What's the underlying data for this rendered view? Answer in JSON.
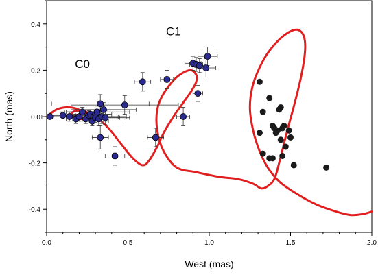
{
  "chart_data": {
    "type": "scatter",
    "title": "",
    "xlabel": "West (mas)",
    "ylabel": "North (mas)",
    "xlim": [
      0.0,
      2.0
    ],
    "ylim": [
      -0.5,
      0.5
    ],
    "x_ticks": [
      "0.0",
      "0.5",
      "1.0",
      "1.5",
      "2.0"
    ],
    "x_tick_values": [
      0.0,
      0.5,
      1.0,
      1.5,
      2.0
    ],
    "y_ticks": [
      "-0.4",
      "-0.2",
      "0.0",
      "0.2",
      "0.4"
    ],
    "y_tick_values": [
      -0.4,
      -0.2,
      0.0,
      0.2,
      0.4
    ],
    "grid": false,
    "annotations": [
      {
        "text": "C0",
        "x": 0.22,
        "y": 0.21
      },
      {
        "text": "C1",
        "x": 0.78,
        "y": 0.35
      }
    ],
    "colors": {
      "blue_points": "#2b2b8f",
      "black_points": "#1a1a1a",
      "curve": "#e02020",
      "error_bars": "#333333"
    },
    "series": [
      {
        "marker": "blue-circle-with-errorbars",
        "points": [
          {
            "x": 0.02,
            "y": 0.0,
            "xerr": 0.05,
            "yerr": 0.01
          },
          {
            "x": 0.1,
            "y": 0.005,
            "xerr": 0.08,
            "yerr": 0.015
          },
          {
            "x": 0.14,
            "y": 0.0,
            "xerr": 0.07,
            "yerr": 0.02
          },
          {
            "x": 0.18,
            "y": -0.01,
            "xerr": 0.06,
            "yerr": 0.02
          },
          {
            "x": 0.2,
            "y": 0.0,
            "xerr": 0.1,
            "yerr": 0.02
          },
          {
            "x": 0.22,
            "y": 0.02,
            "xerr": 0.1,
            "yerr": 0.02
          },
          {
            "x": 0.24,
            "y": -0.01,
            "xerr": 0.08,
            "yerr": 0.02
          },
          {
            "x": 0.26,
            "y": 0.005,
            "xerr": 0.1,
            "yerr": 0.02
          },
          {
            "x": 0.27,
            "y": 0.01,
            "xerr": 0.12,
            "yerr": 0.02
          },
          {
            "x": 0.28,
            "y": -0.02,
            "xerr": 0.1,
            "yerr": 0.02
          },
          {
            "x": 0.29,
            "y": 0.0,
            "xerr": 0.15,
            "yerr": 0.02
          },
          {
            "x": 0.3,
            "y": 0.01,
            "xerr": 0.1,
            "yerr": 0.02
          },
          {
            "x": 0.3,
            "y": -0.005,
            "xerr": 0.15,
            "yerr": 0.02
          },
          {
            "x": 0.31,
            "y": 0.02,
            "xerr": 0.2,
            "yerr": 0.025
          },
          {
            "x": 0.32,
            "y": -0.01,
            "xerr": 0.15,
            "yerr": 0.03
          },
          {
            "x": 0.33,
            "y": 0.055,
            "xerr": 0.3,
            "yerr": 0.04
          },
          {
            "x": 0.34,
            "y": 0.0,
            "xerr": 0.15,
            "yerr": 0.03
          },
          {
            "x": 0.35,
            "y": 0.03,
            "xerr": 0.2,
            "yerr": 0.03
          },
          {
            "x": 0.36,
            "y": -0.005,
            "xerr": 0.15,
            "yerr": 0.03
          },
          {
            "x": 0.33,
            "y": -0.09,
            "xerr": 0.05,
            "yerr": 0.05
          },
          {
            "x": 0.42,
            "y": -0.17,
            "xerr": 0.06,
            "yerr": 0.04
          },
          {
            "x": 0.48,
            "y": 0.05,
            "xerr": 0.33,
            "yerr": 0.04
          },
          {
            "x": 0.59,
            "y": 0.15,
            "xerr": 0.05,
            "yerr": 0.04
          },
          {
            "x": 0.67,
            "y": -0.09,
            "xerr": 0.05,
            "yerr": 0.04
          },
          {
            "x": 0.74,
            "y": 0.16,
            "xerr": 0.04,
            "yerr": 0.04
          },
          {
            "x": 0.84,
            "y": 0.0,
            "xerr": 0.04,
            "yerr": 0.04
          },
          {
            "x": 0.9,
            "y": 0.23,
            "xerr": 0.05,
            "yerr": 0.03
          },
          {
            "x": 0.92,
            "y": 0.225,
            "xerr": 0.04,
            "yerr": 0.03
          },
          {
            "x": 0.93,
            "y": 0.1,
            "xerr": 0.03,
            "yerr": 0.035
          },
          {
            "x": 0.94,
            "y": 0.22,
            "xerr": 0.03,
            "yerr": 0.03
          },
          {
            "x": 0.98,
            "y": 0.21,
            "xerr": 0.06,
            "yerr": 0.04
          },
          {
            "x": 0.99,
            "y": 0.26,
            "xerr": 0.06,
            "yerr": 0.04
          }
        ]
      },
      {
        "marker": "black-circle",
        "points": [
          {
            "x": 1.31,
            "y": 0.15
          },
          {
            "x": 1.31,
            "y": -0.07
          },
          {
            "x": 1.33,
            "y": 0.02
          },
          {
            "x": 1.33,
            "y": -0.16
          },
          {
            "x": 1.37,
            "y": 0.08
          },
          {
            "x": 1.37,
            "y": -0.18
          },
          {
            "x": 1.39,
            "y": -0.18
          },
          {
            "x": 1.39,
            "y": -0.04
          },
          {
            "x": 1.4,
            "y": -0.05
          },
          {
            "x": 1.41,
            "y": -0.07
          },
          {
            "x": 1.42,
            "y": -0.06
          },
          {
            "x": 1.43,
            "y": 0.03
          },
          {
            "x": 1.44,
            "y": 0.04
          },
          {
            "x": 1.44,
            "y": -0.1
          },
          {
            "x": 1.45,
            "y": -0.17
          },
          {
            "x": 1.45,
            "y": -0.05
          },
          {
            "x": 1.46,
            "y": -0.04
          },
          {
            "x": 1.47,
            "y": -0.13
          },
          {
            "x": 1.49,
            "y": -0.06
          },
          {
            "x": 1.5,
            "y": -0.09
          },
          {
            "x": 1.52,
            "y": -0.21
          },
          {
            "x": 1.72,
            "y": -0.22
          }
        ]
      }
    ],
    "curve": {
      "style": "red-line",
      "points": [
        [
          0.0,
          0.0
        ],
        [
          0.06,
          0.03
        ],
        [
          0.12,
          0.04
        ],
        [
          0.18,
          0.035
        ],
        [
          0.22,
          0.02
        ],
        [
          0.24,
          0.005
        ],
        [
          0.22,
          -0.01
        ],
        [
          0.18,
          -0.005
        ],
        [
          0.15,
          0.01
        ],
        [
          0.18,
          0.025
        ],
        [
          0.24,
          0.02
        ],
        [
          0.3,
          0.0
        ],
        [
          0.38,
          -0.05
        ],
        [
          0.46,
          -0.12
        ],
        [
          0.53,
          -0.18
        ],
        [
          0.59,
          -0.21
        ],
        [
          0.63,
          -0.19
        ],
        [
          0.68,
          -0.13
        ],
        [
          0.72,
          -0.07
        ],
        [
          0.78,
          0.0
        ],
        [
          0.84,
          0.06
        ],
        [
          0.89,
          0.11
        ],
        [
          0.92,
          0.15
        ],
        [
          0.92,
          0.18
        ],
        [
          0.88,
          0.2
        ],
        [
          0.8,
          0.17
        ],
        [
          0.72,
          0.1
        ],
        [
          0.68,
          0.03
        ],
        [
          0.68,
          -0.06
        ],
        [
          0.72,
          -0.15
        ],
        [
          0.8,
          -0.22
        ],
        [
          0.92,
          -0.24
        ],
        [
          1.06,
          -0.26
        ],
        [
          1.18,
          -0.27
        ],
        [
          1.27,
          -0.29
        ],
        [
          1.32,
          -0.31
        ],
        [
          1.36,
          -0.3
        ],
        [
          1.4,
          -0.27
        ],
        [
          1.43,
          -0.2
        ],
        [
          1.48,
          -0.06
        ],
        [
          1.53,
          0.07
        ],
        [
          1.57,
          0.19
        ],
        [
          1.59,
          0.29
        ],
        [
          1.58,
          0.35
        ],
        [
          1.54,
          0.375
        ],
        [
          1.48,
          0.36
        ],
        [
          1.4,
          0.31
        ],
        [
          1.33,
          0.24
        ],
        [
          1.27,
          0.14
        ],
        [
          1.25,
          0.04
        ],
        [
          1.27,
          -0.06
        ],
        [
          1.31,
          -0.15
        ],
        [
          1.36,
          -0.22
        ],
        [
          1.43,
          -0.28
        ],
        [
          1.53,
          -0.33
        ],
        [
          1.66,
          -0.38
        ],
        [
          1.78,
          -0.41
        ],
        [
          1.87,
          -0.425
        ],
        [
          1.95,
          -0.42
        ],
        [
          2.0,
          -0.41
        ]
      ]
    }
  }
}
